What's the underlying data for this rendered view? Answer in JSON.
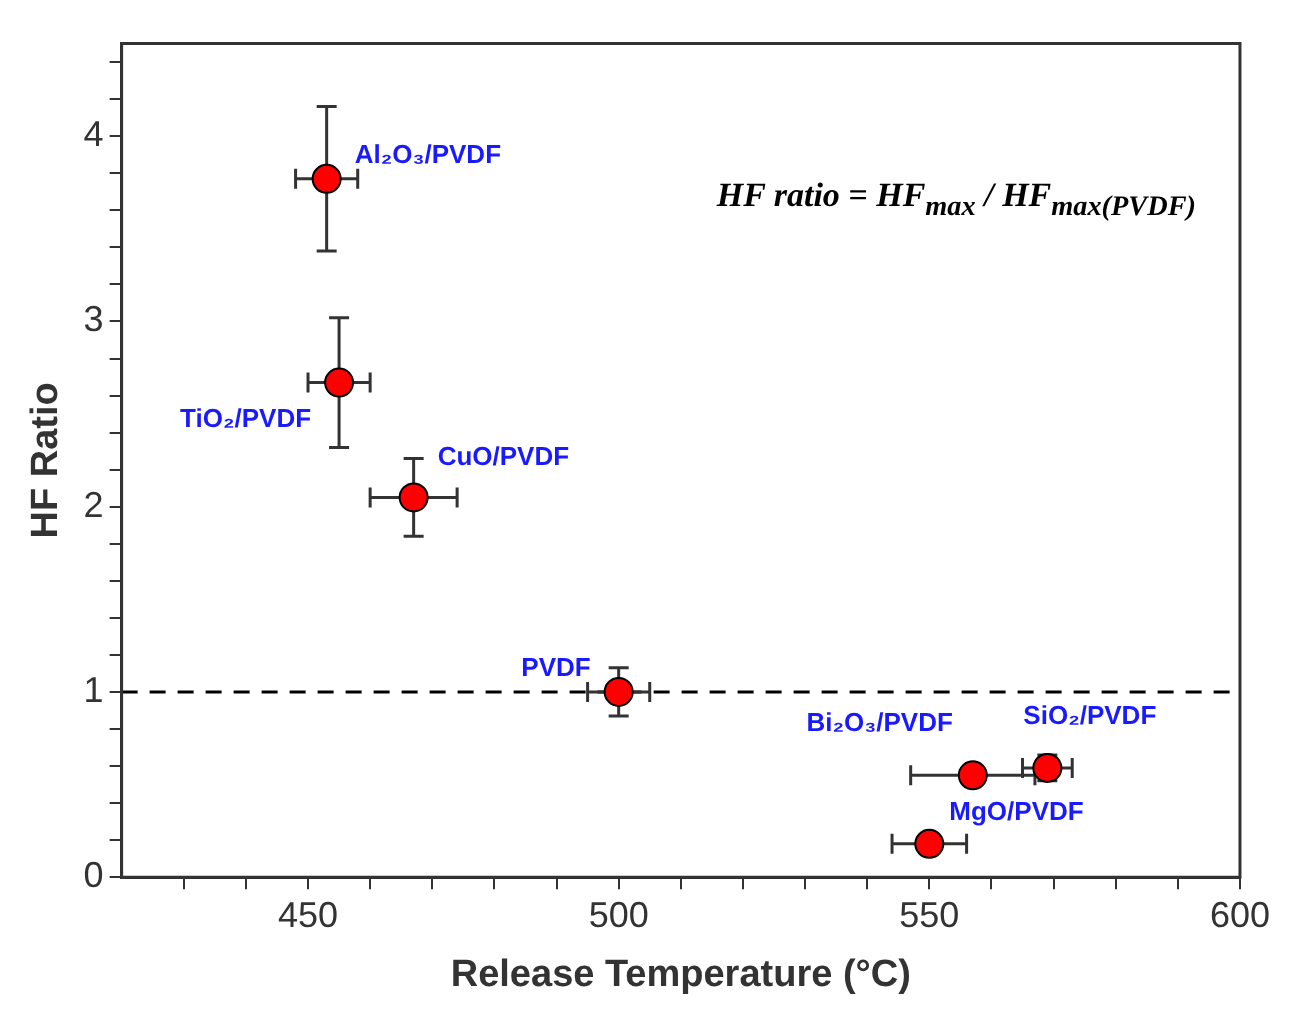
{
  "chart_data": {
    "type": "scatter",
    "xlabel": "Release Temperature (°C)",
    "ylabel": "HF Ratio",
    "x": [
      453,
      455,
      467,
      500,
      557,
      569,
      550
    ],
    "series": [
      {
        "color": "#ff0000",
        "values": [
          3.77,
          2.67,
          2.05,
          1.0,
          0.55,
          0.59,
          0.18
        ],
        "errors": [
          0.39,
          0.35,
          0.21,
          0.13,
          null,
          0.07,
          null
        ],
        "xerrors": [
          5,
          5,
          7,
          5,
          10,
          4,
          6
        ]
      }
    ],
    "marker": "circle",
    "xlim": [
      420,
      600
    ],
    "ylim": [
      0,
      4.5
    ],
    "xticks": [
      {
        "value": 430,
        "label": null
      },
      {
        "value": 440,
        "label": null
      },
      450,
      {
        "value": 460,
        "label": null
      },
      {
        "value": 470,
        "label": null
      },
      {
        "value": 480,
        "label": null
      },
      {
        "value": 490,
        "label": null
      },
      500,
      {
        "value": 510,
        "label": null
      },
      {
        "value": 520,
        "label": null
      },
      {
        "value": 530,
        "label": null
      },
      {
        "value": 540,
        "label": null
      },
      550,
      {
        "value": 560,
        "label": null
      },
      {
        "value": 570,
        "label": null
      },
      {
        "value": 580,
        "label": null
      },
      {
        "value": 590,
        "label": null
      },
      600
    ],
    "yticks": [
      0,
      {
        "value": 0.2,
        "label": null
      },
      {
        "value": 0.4,
        "label": null
      },
      {
        "value": 0.6,
        "label": null
      },
      {
        "value": 0.8,
        "label": null
      },
      1,
      {
        "value": 1.2,
        "label": null
      },
      {
        "value": 1.4,
        "label": null
      },
      {
        "value": 1.6,
        "label": null
      },
      {
        "value": 1.8,
        "label": null
      },
      2,
      {
        "value": 2.2,
        "label": null
      },
      {
        "value": 2.4,
        "label": null
      },
      {
        "value": 2.6,
        "label": null
      },
      {
        "value": 2.8,
        "label": null
      },
      3,
      {
        "value": 3.2,
        "label": null
      },
      {
        "value": 3.4,
        "label": null
      },
      {
        "value": 3.6,
        "label": null
      },
      {
        "value": 3.8,
        "label": null
      },
      4,
      {
        "value": 4.2,
        "label": null
      },
      {
        "value": 4.4,
        "label": null
      }
    ],
    "ref_lines": [
      {
        "axis": "y",
        "value": 1,
        "color": "#000000",
        "line_style": "dashed"
      }
    ],
    "grid": false,
    "legend": false,
    "annotations": [
      {
        "text": "Al₂O₃/PVDF",
        "x": 453,
        "y": 3.77
      },
      {
        "text": "TiO₂/PVDF",
        "x": 455,
        "y": 2.67
      },
      {
        "text": "CuO/PVDF",
        "x": 467,
        "y": 2.05
      },
      {
        "text": "PVDF",
        "x": 500,
        "y": 1.0
      },
      {
        "text": "Bi₂O₃/PVDF",
        "x": 557,
        "y": 0.55
      },
      {
        "text": "SiO₂/PVDF",
        "x": 569,
        "y": 0.59
      },
      {
        "text": "MgO/PVDF",
        "x": 550,
        "y": 0.18
      },
      "HF ratio = HF$_{max}$ / HF$_{max(PVDF)}$"
    ]
  }
}
